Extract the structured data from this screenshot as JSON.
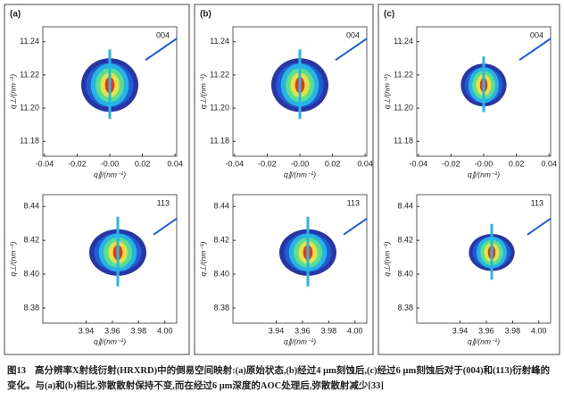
{
  "panels": [
    {
      "label": "(a)",
      "top_tag": "004",
      "bottom_tag": "113"
    },
    {
      "label": "(b)",
      "top_tag": "004",
      "bottom_tag": "113"
    },
    {
      "label": "(c)",
      "top_tag": "004",
      "bottom_tag": "113"
    }
  ],
  "axes": {
    "top": {
      "xlabel": "q∥/(nm⁻¹)",
      "ylabel": "q⊥/(nm⁻¹)",
      "xlim": [
        -0.041,
        0.041
      ],
      "ylim": [
        11.171,
        11.249
      ],
      "xticks": [
        -0.04,
        -0.02,
        {
          "value": 0,
          "label": "-0.00"
        },
        0.02,
        0.04
      ],
      "yticks": [
        11.18,
        {
          "value": 11.2,
          "label": "11.20"
        },
        11.22,
        11.24
      ]
    },
    "bottom": {
      "xlabel": "q∥/(nm⁻¹)",
      "ylabel": "q⊥/(nm⁻¹)",
      "xlim": [
        3.907,
        4.009
      ],
      "ylim": [
        8.371,
        8.447
      ],
      "xticks": [
        3.94,
        3.96,
        3.98,
        {
          "value": 4.0,
          "label": "4.00"
        }
      ],
      "yticks": [
        8.38,
        {
          "value": 8.4,
          "label": "8.40"
        },
        8.42,
        8.44
      ]
    }
  },
  "caption": {
    "label": "图13",
    "text": "高分辨率X射线衍射(HRXRD)中的倒易空间映射:(a)原始状态,(b)经过4 μm刻蚀后,(c)经过6 μm刻蚀后对于(004)和(113)衍射峰的变化。与(a)和(b)相比,弥散散射保持不变,而在经过6 μm深度的AOC处理后,弥散散射减少[33]"
  }
}
